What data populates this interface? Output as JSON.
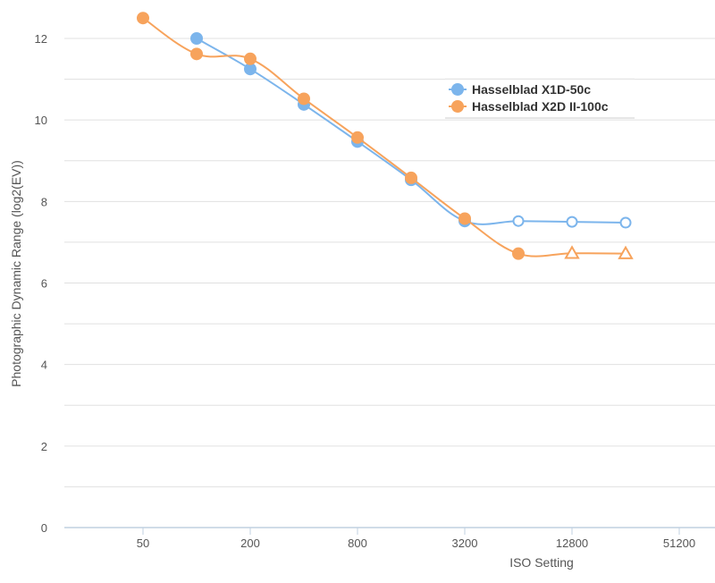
{
  "chart_data": {
    "type": "line",
    "xlabel": "ISO Setting",
    "ylabel": "Photographic Dynamic Range (log2(EV))",
    "x_scale": "log2",
    "x_ticks": [
      50,
      200,
      800,
      3200,
      12800,
      51200
    ],
    "x_tick_labels": [
      "50",
      "200",
      "800",
      "3200",
      "12800",
      "51200"
    ],
    "xlim": [
      25,
      102400
    ],
    "y_ticks": [
      0,
      2,
      4,
      6,
      8,
      10,
      12
    ],
    "y_tick_labels": [
      "0",
      "2",
      "4",
      "6",
      "8",
      "10",
      "12"
    ],
    "ylim": [
      0,
      12.5
    ],
    "grid": "horizontal",
    "legend_position": "top-right",
    "series": [
      {
        "name": "Hasselblad X1D-50c",
        "color": "#7cb5ec",
        "x": [
          100,
          200,
          400,
          800,
          1600,
          3200,
          6400,
          12800,
          25600
        ],
        "values": [
          12.0,
          11.25,
          10.38,
          9.47,
          8.53,
          7.52,
          7.52,
          7.5,
          7.48
        ],
        "marker": "circle",
        "hollow_points": [
          false,
          false,
          false,
          false,
          false,
          false,
          true,
          true,
          true
        ]
      },
      {
        "name": "Hasselblad X2D II-100c",
        "color": "#f7a35c",
        "x": [
          50,
          100,
          200,
          400,
          800,
          1600,
          3200,
          6400,
          12800,
          25600
        ],
        "values": [
          12.5,
          11.62,
          11.5,
          10.52,
          9.57,
          8.58,
          7.58,
          6.72,
          6.73,
          6.72
        ],
        "marker": "circle",
        "hollow_points": [
          false,
          false,
          false,
          false,
          false,
          false,
          false,
          false,
          true,
          true
        ],
        "hollow_marker": "triangle"
      }
    ]
  }
}
